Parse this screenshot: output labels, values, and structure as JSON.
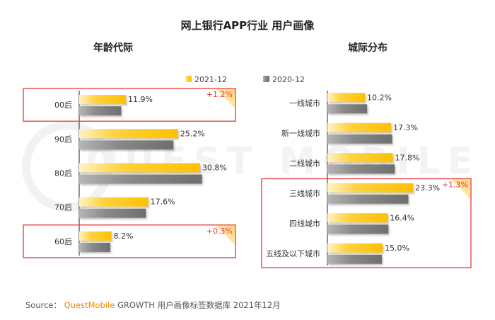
{
  "title": "网上银行APP行业 用户画像",
  "source": {
    "prefix": "Source：",
    "brand": "QuestMobile",
    "suffix": " GROWTH 用户画像标签数据库 2021年12月"
  },
  "watermark": "QUEST MOBILE",
  "colors": {
    "series_2021": "#FFC000",
    "series_2020": "#7F7F7F",
    "highlight_border": "#E8393A",
    "delta_text": "#E8393A",
    "delta_corner": "#FFE3A8"
  },
  "chart_data": [
    {
      "type": "bar",
      "orientation": "horizontal",
      "title": "年龄代际",
      "categories": [
        "00后",
        "90后",
        "80后",
        "70后",
        "60后"
      ],
      "series": [
        {
          "name": "2021-12",
          "values": [
            11.9,
            25.2,
            30.8,
            17.6,
            8.2
          ],
          "labels": [
            "11.9%",
            "25.2%",
            "30.8%",
            "17.6%",
            "8.2%"
          ]
        },
        {
          "name": "2020-12",
          "values": [
            10.7,
            24.0,
            31.3,
            17.0,
            7.9
          ]
        }
      ],
      "xlim": [
        0,
        34
      ],
      "legend": "top",
      "highlights": [
        {
          "category": "00后",
          "delta": "+1.2%"
        },
        {
          "category": "60后",
          "delta": "+0.3%"
        }
      ]
    },
    {
      "type": "bar",
      "orientation": "horizontal",
      "title": "城际分布",
      "categories": [
        "一线城市",
        "新一线城市",
        "二线城市",
        "三线城市",
        "四线城市",
        "五线及以下城市"
      ],
      "series": [
        {
          "name": "2021-12",
          "values": [
            10.2,
            17.3,
            17.8,
            23.3,
            16.4,
            15.0
          ],
          "labels": [
            "10.2%",
            "17.3%",
            "17.8%",
            "23.3%",
            "16.4%",
            "15.0%"
          ]
        },
        {
          "name": "2020-12",
          "values": [
            10.8,
            17.6,
            18.3,
            22.0,
            16.6,
            14.8
          ]
        }
      ],
      "xlim": [
        0,
        26
      ],
      "legend": "top",
      "highlights": [
        {
          "categories": [
            "三线城市",
            "四线城市",
            "五线及以下城市"
          ],
          "delta": "+1.3%"
        }
      ]
    }
  ]
}
